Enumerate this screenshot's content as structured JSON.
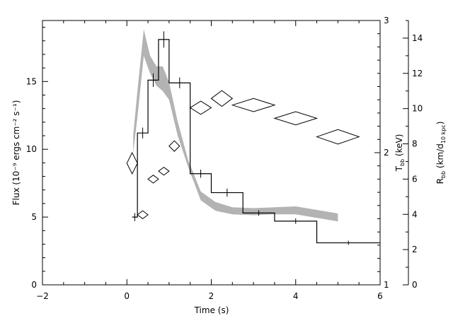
{
  "chart_data": {
    "type": "line",
    "title": "",
    "xlabel": "Time (s)",
    "ylabel": "Flux (10⁻⁹ ergs cm⁻² s⁻¹)",
    "y2label": "T",
    "y2label_sub": "bb",
    "y2label_unit": " (keV)",
    "y3label": "R",
    "y3label_sub": "bb",
    "y3label_unit_pre": " (km/d",
    "y3label_unit_sub": "10 kpc",
    "y3label_unit_post": ")",
    "xlim": [
      -2,
      6
    ],
    "ylim": [
      0,
      19.5
    ],
    "y2lim": [
      1,
      3
    ],
    "y3lim": [
      0,
      15
    ],
    "xticks": [
      -2,
      0,
      2,
      4,
      6
    ],
    "yticks": [
      0,
      5,
      10,
      15
    ],
    "y2ticks": [
      1,
      2,
      3
    ],
    "y3ticks": [
      0,
      2,
      4,
      6,
      8,
      10,
      12,
      14
    ],
    "grid": false,
    "series": [
      {
        "style": "histogram",
        "color": "#000000",
        "bins": [
          {
            "x0": 0.125,
            "x1": 0.25,
            "y": 5.0,
            "err": 0.3
          },
          {
            "x0": 0.25,
            "x1": 0.5,
            "y": 11.2,
            "err": 0.4
          },
          {
            "x0": 0.5,
            "x1": 0.75,
            "y": 15.1,
            "err": 0.5
          },
          {
            "x0": 0.75,
            "x1": 1.0,
            "y": 18.1,
            "err": 0.6
          },
          {
            "x0": 1.0,
            "x1": 1.5,
            "y": 14.9,
            "err": 0.4
          },
          {
            "x0": 1.5,
            "x1": 2.0,
            "y": 8.2,
            "err": 0.3
          },
          {
            "x0": 2.0,
            "x1": 2.75,
            "y": 6.8,
            "err": 0.3
          },
          {
            "x0": 2.75,
            "x1": 3.5,
            "y": 5.3,
            "err": 0.2
          },
          {
            "x0": 3.5,
            "x1": 4.5,
            "y": 4.7,
            "err": 0.2
          },
          {
            "x0": 4.5,
            "x1": 6.0,
            "y": 3.1,
            "err": 0.15
          }
        ]
      },
      {
        "style": "band",
        "color": "#b3b3b3",
        "axis": "y3",
        "x": [
          0.15,
          0.25,
          0.4,
          0.55,
          0.7,
          0.85,
          1.0,
          1.2,
          1.45,
          1.75,
          2.1,
          2.5,
          3.0,
          3.5,
          4.0,
          4.5,
          5.0
        ],
        "lower": [
          7.5,
          9.5,
          13.0,
          12.0,
          11.3,
          11.0,
          10.5,
          8.5,
          6.7,
          4.8,
          4.2,
          4.0,
          3.95,
          4.0,
          4.0,
          3.8,
          3.6
        ],
        "upper": [
          8.5,
          11.0,
          14.5,
          13.0,
          12.4,
          12.4,
          11.5,
          9.3,
          7.1,
          5.3,
          4.7,
          4.4,
          4.35,
          4.4,
          4.45,
          4.25,
          4.05
        ]
      },
      {
        "style": "diamond",
        "color": "#000000",
        "axis": "y2",
        "points": [
          {
            "x": 0.125,
            "y": 1.92,
            "xerr": 0.125,
            "yerr": 0.08
          },
          {
            "x": 0.375,
            "y": 1.53,
            "xerr": 0.125,
            "yerr": 0.03
          },
          {
            "x": 0.625,
            "y": 1.8,
            "xerr": 0.125,
            "yerr": 0.03
          },
          {
            "x": 0.875,
            "y": 1.86,
            "xerr": 0.125,
            "yerr": 0.03
          },
          {
            "x": 1.125,
            "y": 2.05,
            "xerr": 0.125,
            "yerr": 0.04
          },
          {
            "x": 1.75,
            "y": 2.34,
            "xerr": 0.25,
            "yerr": 0.05
          },
          {
            "x": 2.25,
            "y": 2.41,
            "xerr": 0.25,
            "yerr": 0.06
          },
          {
            "x": 3.0,
            "y": 2.36,
            "xerr": 0.5,
            "yerr": 0.05
          },
          {
            "x": 4.0,
            "y": 2.26,
            "xerr": 0.5,
            "yerr": 0.05
          },
          {
            "x": 5.0,
            "y": 2.12,
            "xerr": 0.5,
            "yerr": 0.055
          }
        ]
      }
    ]
  }
}
